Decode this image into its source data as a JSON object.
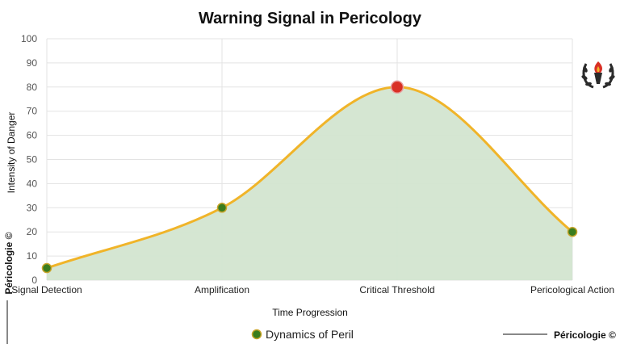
{
  "chart_data": {
    "type": "area",
    "title": "Warning Signal in Pericology",
    "xlabel": "Time Progression",
    "ylabel": "Intensity of Danger",
    "categories": [
      "Signal Detection",
      "Amplification",
      "Critical Threshold",
      "Pericological Action"
    ],
    "ylim": [
      0,
      100
    ],
    "yticks": [
      0,
      10,
      20,
      30,
      40,
      50,
      60,
      70,
      80,
      90,
      100
    ],
    "grid": true,
    "legend_position": "bottom",
    "series": [
      {
        "name": "Dynamics of Peril",
        "values": [
          5,
          30,
          80,
          20
        ]
      }
    ],
    "highlight_index": 2
  },
  "branding": {
    "bottom_right": "Péricologie ©",
    "left_vertical": "Péricologie ©"
  },
  "colors": {
    "line": "#f0b429",
    "fill": "#d3e5d0",
    "point": "#3a7d1e",
    "point_border": "#c7a42a",
    "highlight_point": "#d93025",
    "grid": "#e3e3e3"
  },
  "icons": {
    "logo": "torch-laurel-icon"
  }
}
